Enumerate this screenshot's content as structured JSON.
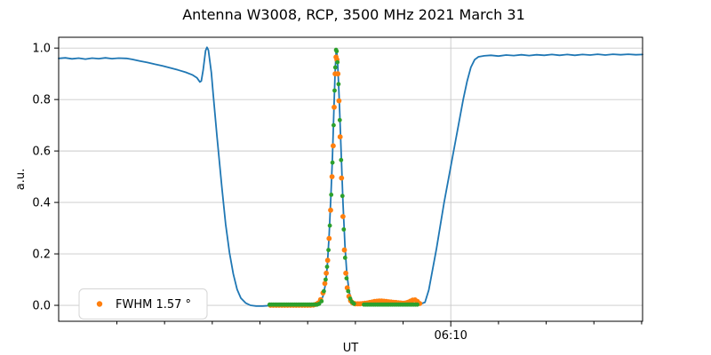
{
  "chart_data": {
    "type": "line+scatter",
    "title": "Antenna W3008, RCP, 3500 MHz 2021 March 31",
    "xlabel": "UT",
    "ylabel": "a.u.",
    "x_unit": "minutes since 05:00 UT",
    "xlim": [
      28.9,
      90.1
    ],
    "ylim": [
      -0.062,
      1.042
    ],
    "yticks": [
      0.0,
      0.2,
      0.4,
      0.6,
      0.8,
      1.0
    ],
    "ytick_labels": [
      "0.0",
      "0.2",
      "0.4",
      "0.6",
      "0.8",
      "1.0"
    ],
    "xticks_minor": [
      35,
      40,
      45,
      50,
      55,
      60,
      65,
      75,
      80,
      85,
      90
    ],
    "xtick_major": {
      "value": 70,
      "label": "06:10"
    },
    "grid": {
      "horizontal": true,
      "vertical_at_major": true,
      "color": "#c9c9c9"
    },
    "legend": {
      "label": "FWHM 1.57 °",
      "marker_color": "#ff7f0e",
      "position": "lower left"
    },
    "series": [
      {
        "name": "drift-scan-signal",
        "type": "line",
        "color": "#1f77b4",
        "width": 1.8,
        "points": [
          [
            28.9,
            0.96
          ],
          [
            29.6,
            0.962
          ],
          [
            30.3,
            0.958
          ],
          [
            31.0,
            0.961
          ],
          [
            31.7,
            0.957
          ],
          [
            32.4,
            0.961
          ],
          [
            33.1,
            0.959
          ],
          [
            33.8,
            0.962
          ],
          [
            34.5,
            0.959
          ],
          [
            35.2,
            0.961
          ],
          [
            36.0,
            0.96
          ],
          [
            36.6,
            0.956
          ],
          [
            37.4,
            0.95
          ],
          [
            38.2,
            0.944
          ],
          [
            39.0,
            0.937
          ],
          [
            39.8,
            0.931
          ],
          [
            40.6,
            0.923
          ],
          [
            41.4,
            0.915
          ],
          [
            42.2,
            0.906
          ],
          [
            42.9,
            0.896
          ],
          [
            43.4,
            0.884
          ],
          [
            43.7,
            0.868
          ],
          [
            43.85,
            0.872
          ],
          [
            44.05,
            0.915
          ],
          [
            44.3,
            0.99
          ],
          [
            44.45,
            1.003
          ],
          [
            44.6,
            0.992
          ],
          [
            44.9,
            0.905
          ],
          [
            45.1,
            0.82
          ],
          [
            45.5,
            0.655
          ],
          [
            46.0,
            0.46
          ],
          [
            46.4,
            0.315
          ],
          [
            46.8,
            0.205
          ],
          [
            47.2,
            0.122
          ],
          [
            47.6,
            0.062
          ],
          [
            48.0,
            0.028
          ],
          [
            48.5,
            0.009
          ],
          [
            49.0,
            0.0
          ],
          [
            49.6,
            -0.003
          ],
          [
            50.3,
            -0.003
          ],
          [
            51.0,
            -0.001
          ],
          [
            52.0,
            0.0
          ],
          [
            53.0,
            0.001
          ],
          [
            54.0,
            0.001
          ],
          [
            55.0,
            0.002
          ],
          [
            56.0,
            0.004
          ],
          [
            56.3,
            0.012
          ],
          [
            56.6,
            0.035
          ],
          [
            56.85,
            0.08
          ],
          [
            57.05,
            0.15
          ],
          [
            57.25,
            0.27
          ],
          [
            57.45,
            0.44
          ],
          [
            57.6,
            0.58
          ],
          [
            57.75,
            0.76
          ],
          [
            57.87,
            0.9
          ],
          [
            57.97,
            0.98
          ],
          [
            58.05,
            0.99
          ],
          [
            58.15,
            0.935
          ],
          [
            58.3,
            0.81
          ],
          [
            58.5,
            0.6
          ],
          [
            58.7,
            0.4
          ],
          [
            58.9,
            0.235
          ],
          [
            59.1,
            0.125
          ],
          [
            59.35,
            0.052
          ],
          [
            59.6,
            0.02
          ],
          [
            59.9,
            0.007
          ],
          [
            60.3,
            0.003
          ],
          [
            61.0,
            0.002
          ],
          [
            62.0,
            0.002
          ],
          [
            63.0,
            0.002
          ],
          [
            64.0,
            0.002
          ],
          [
            65.0,
            0.002
          ],
          [
            66.0,
            0.003
          ],
          [
            66.8,
            0.005
          ],
          [
            67.3,
            0.012
          ],
          [
            67.7,
            0.06
          ],
          [
            68.1,
            0.14
          ],
          [
            68.5,
            0.22
          ],
          [
            68.9,
            0.31
          ],
          [
            69.3,
            0.4
          ],
          [
            69.7,
            0.48
          ],
          [
            70.1,
            0.56
          ],
          [
            70.5,
            0.64
          ],
          [
            70.9,
            0.72
          ],
          [
            71.3,
            0.8
          ],
          [
            71.7,
            0.87
          ],
          [
            72.1,
            0.925
          ],
          [
            72.5,
            0.955
          ],
          [
            72.9,
            0.966
          ],
          [
            73.5,
            0.97
          ],
          [
            74.2,
            0.972
          ],
          [
            75.0,
            0.969
          ],
          [
            75.8,
            0.973
          ],
          [
            76.6,
            0.971
          ],
          [
            77.4,
            0.974
          ],
          [
            78.2,
            0.971
          ],
          [
            79.0,
            0.974
          ],
          [
            79.8,
            0.972
          ],
          [
            80.6,
            0.975
          ],
          [
            81.4,
            0.972
          ],
          [
            82.2,
            0.975
          ],
          [
            83.0,
            0.972
          ],
          [
            83.8,
            0.975
          ],
          [
            84.6,
            0.973
          ],
          [
            85.4,
            0.976
          ],
          [
            86.2,
            0.973
          ],
          [
            87.0,
            0.976
          ],
          [
            87.8,
            0.974
          ],
          [
            88.6,
            0.976
          ],
          [
            89.4,
            0.974
          ],
          [
            90.1,
            0.975
          ]
        ]
      },
      {
        "name": "gaussian-fit-orange",
        "type": "scatter",
        "color": "#ff7f0e",
        "radius": 2.9,
        "points": [
          [
            51.1,
            0.0
          ],
          [
            51.4,
            0.0
          ],
          [
            51.7,
            0.0
          ],
          [
            52.0,
            0.0
          ],
          [
            52.3,
            0.0
          ],
          [
            52.6,
            0.0
          ],
          [
            52.9,
            0.0
          ],
          [
            53.2,
            0.0
          ],
          [
            53.5,
            0.0
          ],
          [
            53.8,
            0.0
          ],
          [
            54.1,
            0.0
          ],
          [
            54.4,
            0.0
          ],
          [
            54.7,
            0.0
          ],
          [
            55.0,
            0.0
          ],
          [
            55.3,
            0.0
          ],
          [
            55.6,
            0.001
          ],
          [
            55.85,
            0.004
          ],
          [
            56.1,
            0.009
          ],
          [
            56.35,
            0.022
          ],
          [
            56.6,
            0.048
          ],
          [
            56.8,
            0.085
          ],
          [
            56.95,
            0.125
          ],
          [
            57.1,
            0.175
          ],
          [
            57.25,
            0.26
          ],
          [
            57.4,
            0.37
          ],
          [
            57.55,
            0.5
          ],
          [
            57.67,
            0.62
          ],
          [
            57.78,
            0.77
          ],
          [
            57.88,
            0.9
          ],
          [
            57.97,
            0.965
          ],
          [
            58.07,
            0.955
          ],
          [
            58.17,
            0.9
          ],
          [
            58.28,
            0.795
          ],
          [
            58.4,
            0.655
          ],
          [
            58.55,
            0.495
          ],
          [
            58.7,
            0.345
          ],
          [
            58.85,
            0.215
          ],
          [
            59.0,
            0.125
          ],
          [
            59.15,
            0.068
          ],
          [
            59.32,
            0.035
          ],
          [
            59.5,
            0.018
          ],
          [
            59.7,
            0.01
          ],
          [
            59.9,
            0.007
          ],
          [
            60.0,
            0.006
          ],
          [
            60.25,
            0.006
          ],
          [
            60.5,
            0.006
          ],
          [
            60.75,
            0.007
          ],
          [
            61.0,
            0.008
          ],
          [
            61.25,
            0.009
          ],
          [
            61.5,
            0.011
          ],
          [
            61.75,
            0.013
          ],
          [
            62.0,
            0.015
          ],
          [
            62.25,
            0.016
          ],
          [
            62.5,
            0.017
          ],
          [
            62.75,
            0.017
          ],
          [
            63.0,
            0.016
          ],
          [
            63.25,
            0.015
          ],
          [
            63.5,
            0.014
          ],
          [
            63.75,
            0.013
          ],
          [
            64.0,
            0.012
          ],
          [
            64.25,
            0.011
          ],
          [
            64.5,
            0.01
          ],
          [
            64.75,
            0.009
          ],
          [
            65.0,
            0.008
          ],
          [
            65.25,
            0.009
          ],
          [
            65.5,
            0.012
          ],
          [
            65.75,
            0.016
          ],
          [
            66.0,
            0.02
          ],
          [
            66.25,
            0.021
          ],
          [
            66.5,
            0.015
          ],
          [
            66.75,
            0.007
          ]
        ]
      },
      {
        "name": "gaussian-fit-green",
        "type": "scatter",
        "color": "#2ca02c",
        "radius": 2.4,
        "points": [
          [
            51.0,
            0.003
          ],
          [
            51.2,
            0.003
          ],
          [
            51.4,
            0.003
          ],
          [
            51.6,
            0.003
          ],
          [
            51.8,
            0.003
          ],
          [
            52.0,
            0.003
          ],
          [
            52.2,
            0.003
          ],
          [
            52.4,
            0.003
          ],
          [
            52.6,
            0.003
          ],
          [
            52.8,
            0.003
          ],
          [
            53.0,
            0.003
          ],
          [
            53.2,
            0.003
          ],
          [
            53.4,
            0.003
          ],
          [
            53.6,
            0.003
          ],
          [
            53.8,
            0.003
          ],
          [
            54.0,
            0.003
          ],
          [
            54.2,
            0.003
          ],
          [
            54.4,
            0.003
          ],
          [
            54.6,
            0.003
          ],
          [
            54.8,
            0.003
          ],
          [
            55.0,
            0.003
          ],
          [
            55.2,
            0.003
          ],
          [
            55.4,
            0.003
          ],
          [
            55.6,
            0.003
          ],
          [
            55.8,
            0.003
          ],
          [
            56.0,
            0.003
          ],
          [
            56.2,
            0.006
          ],
          [
            56.45,
            0.016
          ],
          [
            56.7,
            0.055
          ],
          [
            56.88,
            0.1
          ],
          [
            57.03,
            0.15
          ],
          [
            57.18,
            0.215
          ],
          [
            57.32,
            0.31
          ],
          [
            57.47,
            0.43
          ],
          [
            57.6,
            0.555
          ],
          [
            57.72,
            0.7
          ],
          [
            57.82,
            0.835
          ],
          [
            57.9,
            0.925
          ],
          [
            57.97,
            0.993
          ],
          [
            58.04,
            0.988
          ],
          [
            58.12,
            0.945
          ],
          [
            58.23,
            0.86
          ],
          [
            58.36,
            0.72
          ],
          [
            58.5,
            0.565
          ],
          [
            58.64,
            0.425
          ],
          [
            58.78,
            0.295
          ],
          [
            58.92,
            0.185
          ],
          [
            59.07,
            0.105
          ],
          [
            59.25,
            0.055
          ],
          [
            59.45,
            0.026
          ],
          [
            59.65,
            0.013
          ],
          [
            59.85,
            0.006
          ],
          [
            60.9,
            0.003
          ],
          [
            61.1,
            0.003
          ],
          [
            61.3,
            0.003
          ],
          [
            61.5,
            0.003
          ],
          [
            61.7,
            0.003
          ],
          [
            61.9,
            0.003
          ],
          [
            62.1,
            0.003
          ],
          [
            62.3,
            0.003
          ],
          [
            62.5,
            0.003
          ],
          [
            62.7,
            0.003
          ],
          [
            62.9,
            0.003
          ],
          [
            63.1,
            0.003
          ],
          [
            63.3,
            0.003
          ],
          [
            63.5,
            0.003
          ],
          [
            63.7,
            0.003
          ],
          [
            63.9,
            0.003
          ],
          [
            64.1,
            0.003
          ],
          [
            64.3,
            0.003
          ],
          [
            64.5,
            0.003
          ],
          [
            64.7,
            0.003
          ],
          [
            64.9,
            0.003
          ],
          [
            65.1,
            0.003
          ],
          [
            65.3,
            0.003
          ],
          [
            65.5,
            0.003
          ],
          [
            65.7,
            0.003
          ],
          [
            65.9,
            0.003
          ],
          [
            66.1,
            0.003
          ],
          [
            66.3,
            0.003
          ],
          [
            66.5,
            0.003
          ]
        ]
      }
    ]
  }
}
